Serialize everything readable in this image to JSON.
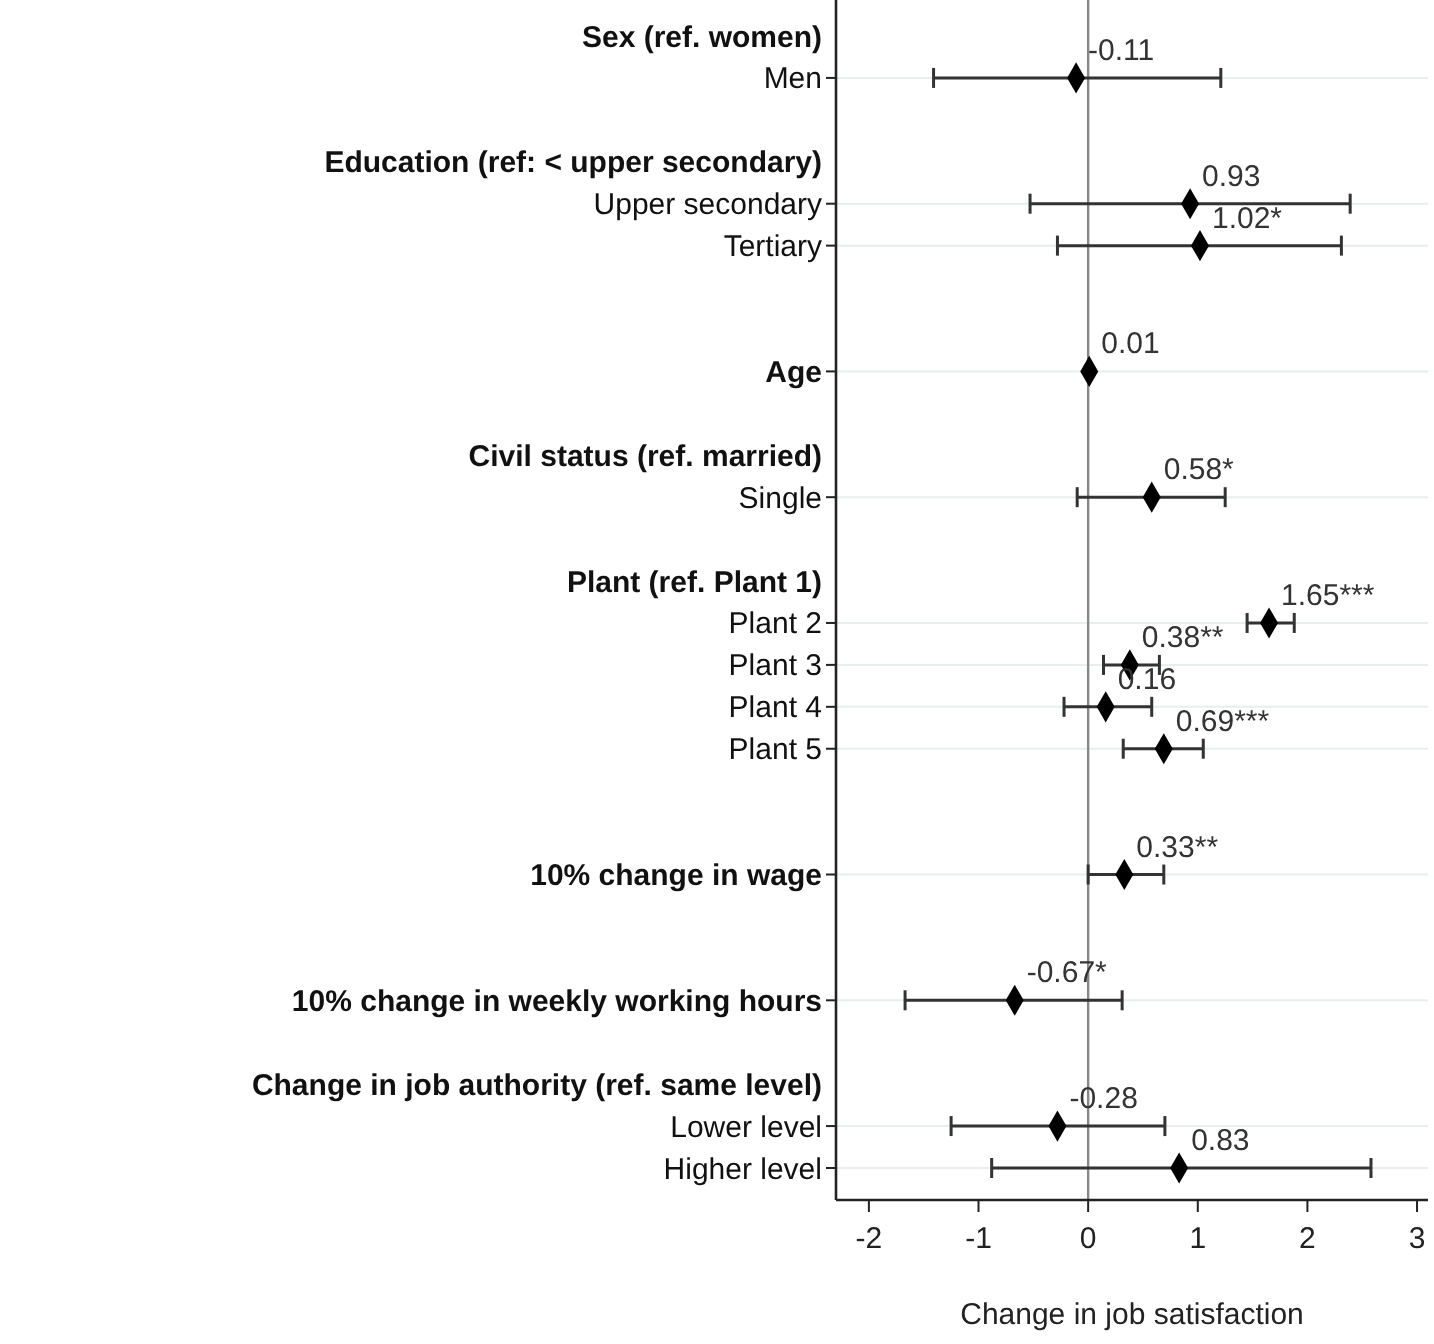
{
  "chart_data": {
    "type": "scatter",
    "orientation": "horizontal",
    "xlabel": "Change in job satisfaction",
    "categories": [
      "Sex (ref. women)",
      "Men",
      null,
      "Education (ref: < upper secondary)",
      "Upper secondary",
      "Tertiary",
      null,
      null,
      "Age",
      null,
      "Civil status (ref. married)",
      "Single",
      null,
      "Plant (ref. Plant 1)",
      "Plant 2",
      "Plant 3",
      "Plant 4",
      "Plant 5",
      null,
      null,
      "10% change in wage",
      null,
      null,
      "10% change in weekly working hours",
      null,
      "Change in job authority (ref. same level)",
      "Lower level",
      "Higher level"
    ],
    "series": [
      {
        "color": "#000000",
        "values": [
          null,
          -0.11,
          null,
          null,
          0.93,
          1.02,
          null,
          null,
          0.01,
          null,
          null,
          0.58,
          null,
          null,
          1.65,
          0.38,
          0.16,
          0.69,
          null,
          null,
          0.33,
          null,
          null,
          -0.67,
          null,
          null,
          -0.28,
          0.83
        ],
        "errors": [
          null,
          [
            -1.41,
            1.21
          ],
          null,
          null,
          [
            -0.53,
            2.39
          ],
          [
            -0.28,
            2.31
          ],
          null,
          null,
          null,
          null,
          null,
          [
            -0.1,
            1.25
          ],
          null,
          null,
          [
            1.45,
            1.88
          ],
          [
            0.14,
            0.65
          ],
          [
            -0.22,
            0.58
          ],
          [
            0.32,
            1.05
          ],
          null,
          null,
          [
            0.0,
            0.69
          ],
          null,
          null,
          [
            -1.67,
            0.31
          ],
          null,
          null,
          [
            -1.25,
            0.7
          ],
          [
            -0.88,
            2.58
          ]
        ],
        "value_labels": [
          null,
          "-0.11",
          null,
          null,
          "0.93",
          "1.02*",
          null,
          null,
          "0.01",
          null,
          null,
          "0.58*",
          null,
          null,
          "1.65***",
          "0.38**",
          "0.16",
          "0.69***",
          null,
          null,
          "0.33**",
          null,
          null,
          "-0.67*",
          null,
          null,
          "-0.28",
          "0.83"
        ]
      }
    ],
    "xlim": [
      -2.3,
      3.1
    ],
    "xticks": [
      -2,
      -1,
      0,
      1,
      2,
      3
    ],
    "grid": "y",
    "marker": "diamond",
    "ref_lines": [
      {
        "axis": "x",
        "value": 0,
        "color": "#888888"
      }
    ]
  }
}
